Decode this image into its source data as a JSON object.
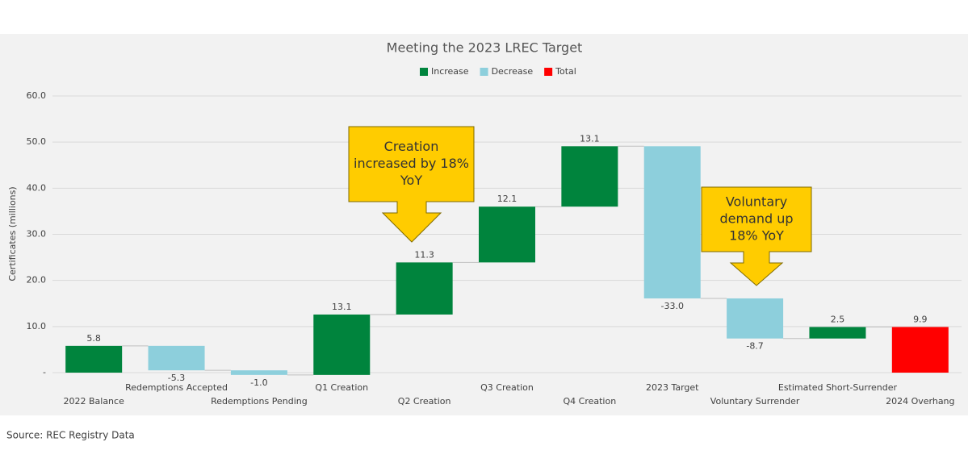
{
  "chart_data": {
    "type": "waterfall",
    "title": "Meeting the 2023 LREC Target",
    "y_label": "Certificates (millions)",
    "categories": [
      "2022 Balance",
      "Redemptions Accepted",
      "Redemptions Pending",
      "Q1 Creation",
      "Q2 Creation",
      "Q3 Creation",
      "Q4 Creation",
      "2023 Target",
      "Voluntary Surrender",
      "Estimated Short-Surrender",
      "2024 Overhang"
    ],
    "series": [
      {
        "name": "Increase",
        "color": "#00843d",
        "values": [
          5.8,
          null,
          null,
          13.1,
          11.3,
          12.1,
          13.1,
          null,
          null,
          2.5,
          null
        ]
      },
      {
        "name": "Decrease",
        "color": "#8dcfdc",
        "values": [
          null,
          -5.3,
          -1.0,
          null,
          null,
          null,
          null,
          -33.0,
          -8.7,
          null,
          null
        ],
        "value_labels": [
          null,
          "-5.3",
          "-1.0",
          null,
          null,
          null,
          null,
          "-33.0",
          "-8.7",
          null,
          null
        ]
      },
      {
        "name": "Total",
        "color": "#ff0000",
        "kind": "total",
        "values": [
          null,
          null,
          null,
          null,
          null,
          null,
          null,
          null,
          null,
          null,
          9.9
        ]
      }
    ],
    "ylim": [
      0,
      60
    ],
    "yticks": [
      {
        "value": 0,
        "label": "-"
      },
      {
        "value": 10,
        "label": "10.0"
      },
      {
        "value": 20,
        "label": "20.0"
      },
      {
        "value": 30,
        "label": "30.0"
      },
      {
        "value": 40,
        "label": "40.0"
      },
      {
        "value": 50,
        "label": "50.0"
      },
      {
        "value": 60,
        "label": "60.0"
      }
    ],
    "grid": true,
    "annotations": [
      {
        "lines": [
          "Creation",
          "increased by 18%",
          "YoY"
        ]
      },
      {
        "lines": [
          "Voluntary",
          "demand up",
          "18% YoY"
        ]
      }
    ]
  },
  "source": "Source: REC Registry Data"
}
